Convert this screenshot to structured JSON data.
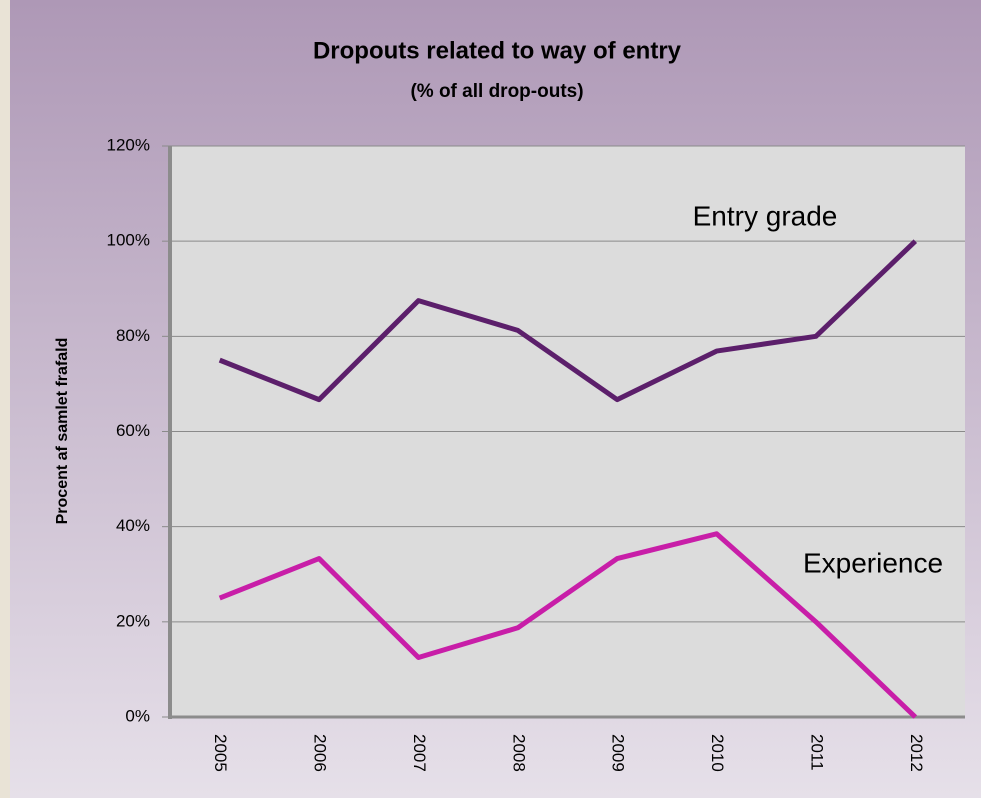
{
  "chart_data": {
    "type": "line",
    "title": "Dropouts related to way of entry",
    "subtitle": "(% of all drop-outs)",
    "y_label": "Procent af samlet frafald",
    "categories": [
      "2005",
      "2006",
      "2007",
      "2008",
      "2009",
      "2010",
      "2011",
      "2012"
    ],
    "series": [
      {
        "name": "Entry grade",
        "color": "#5c1f6b",
        "values": [
          75,
          66.7,
          87.5,
          81.25,
          66.7,
          76.9,
          80,
          100
        ]
      },
      {
        "name": "Experience",
        "color": "#c81ea8",
        "values": [
          25,
          33.3,
          12.5,
          18.75,
          33.3,
          38.5,
          20,
          0
        ]
      }
    ],
    "ylim": [
      0,
      120
    ],
    "yticks": [
      {
        "value": 0,
        "label": "0%"
      },
      {
        "value": 20,
        "label": "20%"
      },
      {
        "value": 40,
        "label": "40%"
      },
      {
        "value": 60,
        "label": "60%"
      },
      {
        "value": 80,
        "label": "80%"
      },
      {
        "value": 100,
        "label": "100%"
      },
      {
        "value": 120,
        "label": "120%"
      }
    ],
    "grid": true
  }
}
